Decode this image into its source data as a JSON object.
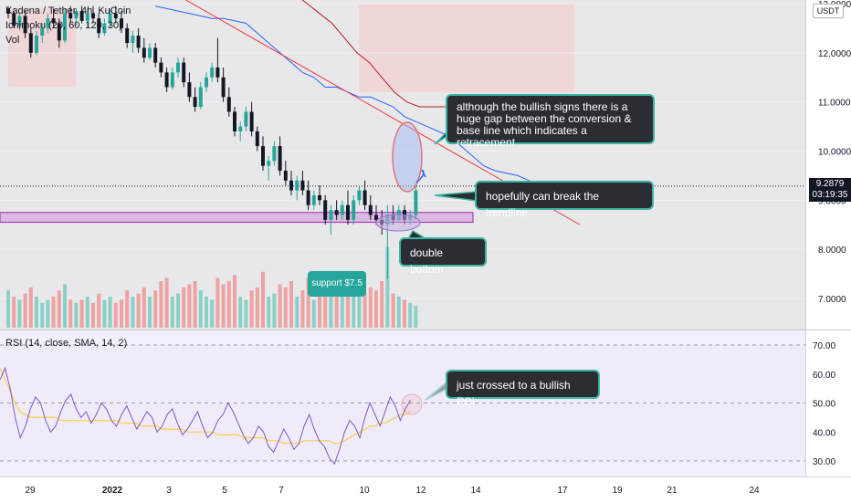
{
  "legend": {
    "symbol": "Kadena / Tether, 4h, KuCoin",
    "ichimoku": "Ichimoku (20, 60, 120, 30)",
    "vol": "Vol",
    "rsi": "RSI (14, close, SMA, 14, 2)"
  },
  "price_axis": {
    "currency": "USDT",
    "last_price": "9.2879",
    "countdown": "03:19:35"
  },
  "annotations": {
    "gap_note": "although the bullish signs there is a huge gap between the conversion & base line which indicates a retracement",
    "trendline_note": "hopefully can break the trendline",
    "double_bottom": "double bottom",
    "support": "support $7.5",
    "rsi_note": "just crossed to a bullish RSI"
  },
  "colors": {
    "up": "#26a69a",
    "down": "#131722",
    "vol_up": "#7fcdc4",
    "vol_down": "#ef9a9a",
    "conversion": "#2962ff",
    "base": "#b71c1c",
    "trendline": "#f23645",
    "rsi": "#7e57c2",
    "rsi_ma": "#f6d04d",
    "support_zone": "#ce93d8",
    "callout_border": "#3bb3a0"
  },
  "chart_data": [
    {
      "type": "candlestick",
      "title": "Kadena / Tether, 4h, KuCoin",
      "ylabel": "USDT",
      "ylim": [
        6.5,
        13.0
      ],
      "y_ticks": [
        "13.0000",
        "12.0000",
        "11.0000",
        "10.0000",
        "9.0000",
        "8.0000",
        "7.0000"
      ],
      "x_ticks": [
        "29",
        "2022",
        "3",
        "5",
        "7",
        "10",
        "12",
        "14",
        "17",
        "19",
        "21",
        "24"
      ],
      "candles": [
        [
          12.9,
          12.95,
          12.7,
          12.8
        ],
        [
          12.8,
          12.85,
          12.5,
          12.55
        ],
        [
          12.55,
          12.8,
          12.45,
          12.75
        ],
        [
          12.75,
          12.85,
          12.3,
          12.4
        ],
        [
          12.4,
          12.5,
          11.9,
          12.0
        ],
        [
          12.0,
          12.45,
          11.95,
          12.35
        ],
        [
          12.35,
          12.6,
          12.2,
          12.5
        ],
        [
          12.5,
          12.8,
          12.4,
          12.7
        ],
        [
          12.7,
          12.9,
          12.5,
          12.6
        ],
        [
          12.6,
          12.7,
          12.1,
          12.25
        ],
        [
          12.25,
          12.9,
          12.2,
          12.8
        ],
        [
          12.8,
          12.95,
          12.6,
          12.7
        ],
        [
          12.7,
          12.9,
          12.55,
          12.85
        ],
        [
          12.85,
          12.95,
          12.6,
          12.65
        ],
        [
          12.65,
          12.9,
          12.5,
          12.8
        ],
        [
          12.8,
          12.95,
          12.6,
          12.7
        ],
        [
          12.7,
          12.8,
          12.3,
          12.4
        ],
        [
          12.4,
          12.7,
          12.35,
          12.6
        ],
        [
          12.6,
          12.9,
          12.5,
          12.8
        ],
        [
          12.8,
          12.95,
          12.6,
          12.7
        ],
        [
          12.7,
          12.85,
          12.4,
          12.5
        ],
        [
          12.5,
          12.6,
          12.1,
          12.2
        ],
        [
          12.2,
          12.45,
          12.0,
          12.35
        ],
        [
          12.35,
          12.5,
          12.0,
          12.1
        ],
        [
          12.1,
          12.3,
          11.8,
          11.9
        ],
        [
          11.9,
          12.2,
          11.85,
          12.1
        ],
        [
          12.1,
          12.2,
          11.7,
          11.8
        ],
        [
          11.8,
          11.9,
          11.5,
          11.6
        ],
        [
          11.6,
          11.7,
          11.2,
          11.3
        ],
        [
          11.3,
          11.7,
          11.25,
          11.6
        ],
        [
          11.6,
          11.9,
          11.5,
          11.8
        ],
        [
          11.8,
          11.9,
          11.3,
          11.4
        ],
        [
          11.4,
          11.6,
          11.0,
          11.1
        ],
        [
          11.1,
          11.3,
          10.8,
          10.9
        ],
        [
          10.9,
          11.4,
          10.85,
          11.3
        ],
        [
          11.3,
          11.6,
          11.2,
          11.5
        ],
        [
          11.5,
          11.8,
          11.4,
          11.7
        ],
        [
          11.7,
          12.3,
          11.4,
          11.5
        ],
        [
          11.5,
          11.7,
          11.0,
          11.1
        ],
        [
          11.1,
          11.3,
          10.7,
          10.8
        ],
        [
          10.8,
          10.9,
          10.3,
          10.4
        ],
        [
          10.4,
          10.6,
          10.2,
          10.5
        ],
        [
          10.5,
          10.9,
          10.4,
          10.8
        ],
        [
          10.8,
          11.0,
          10.3,
          10.4
        ],
        [
          10.4,
          10.5,
          10.0,
          10.1
        ],
        [
          10.1,
          10.3,
          9.6,
          9.7
        ],
        [
          9.7,
          9.9,
          9.4,
          9.8
        ],
        [
          9.8,
          10.2,
          9.7,
          10.1
        ],
        [
          10.1,
          10.3,
          9.5,
          9.6
        ],
        [
          9.6,
          9.8,
          9.3,
          9.4
        ],
        [
          9.4,
          9.6,
          9.1,
          9.2
        ],
        [
          9.2,
          9.5,
          9.0,
          9.4
        ],
        [
          9.4,
          9.6,
          9.1,
          9.2
        ],
        [
          9.2,
          9.4,
          8.8,
          8.9
        ],
        [
          8.9,
          9.2,
          8.8,
          9.1
        ],
        [
          9.1,
          9.3,
          8.9,
          9.0
        ],
        [
          9.0,
          9.1,
          8.5,
          8.6
        ],
        [
          8.6,
          8.9,
          8.3,
          8.8
        ],
        [
          8.8,
          9.0,
          8.6,
          8.7
        ],
        [
          8.7,
          9.0,
          8.6,
          8.9
        ],
        [
          8.9,
          9.2,
          8.5,
          8.6
        ],
        [
          8.6,
          9.1,
          8.5,
          9.0
        ],
        [
          9.0,
          9.3,
          8.9,
          9.2
        ],
        [
          9.2,
          9.4,
          8.8,
          8.9
        ],
        [
          8.9,
          9.1,
          8.6,
          8.7
        ],
        [
          8.7,
          8.9,
          8.5,
          8.6
        ],
        [
          8.6,
          8.8,
          8.3,
          8.5
        ],
        [
          8.5,
          8.9,
          7.4,
          8.7
        ],
        [
          8.7,
          8.9,
          8.5,
          8.6
        ],
        [
          8.6,
          8.9,
          8.55,
          8.8
        ],
        [
          8.8,
          8.9,
          8.5,
          8.6
        ],
        [
          8.6,
          8.8,
          8.5,
          8.7
        ],
        [
          8.7,
          9.3,
          8.6,
          9.2
        ]
      ],
      "volume": [
        [
          1.2,
          1
        ],
        [
          1.0,
          0
        ],
        [
          0.9,
          1
        ],
        [
          1.1,
          0
        ],
        [
          1.3,
          0
        ],
        [
          1.0,
          1
        ],
        [
          0.8,
          1
        ],
        [
          0.9,
          1
        ],
        [
          1.0,
          0
        ],
        [
          1.2,
          0
        ],
        [
          1.4,
          1
        ],
        [
          0.9,
          0
        ],
        [
          0.8,
          1
        ],
        [
          0.9,
          0
        ],
        [
          1.0,
          1
        ],
        [
          0.8,
          0
        ],
        [
          1.1,
          0
        ],
        [
          0.9,
          1
        ],
        [
          1.0,
          1
        ],
        [
          0.8,
          0
        ],
        [
          0.9,
          0
        ],
        [
          1.2,
          0
        ],
        [
          1.0,
          1
        ],
        [
          1.1,
          0
        ],
        [
          1.3,
          0
        ],
        [
          1.0,
          1
        ],
        [
          1.2,
          0
        ],
        [
          1.5,
          0
        ],
        [
          1.6,
          0
        ],
        [
          1.0,
          1
        ],
        [
          1.1,
          1
        ],
        [
          1.3,
          0
        ],
        [
          1.4,
          0
        ],
        [
          1.5,
          0
        ],
        [
          1.2,
          1
        ],
        [
          1.0,
          1
        ],
        [
          0.9,
          1
        ],
        [
          1.6,
          0
        ],
        [
          1.4,
          0
        ],
        [
          1.5,
          0
        ],
        [
          1.7,
          0
        ],
        [
          1.0,
          1
        ],
        [
          0.9,
          1
        ],
        [
          1.2,
          0
        ],
        [
          1.3,
          0
        ],
        [
          1.8,
          0
        ],
        [
          1.0,
          1
        ],
        [
          1.1,
          1
        ],
        [
          1.4,
          0
        ],
        [
          1.3,
          0
        ],
        [
          1.5,
          0
        ],
        [
          1.0,
          1
        ],
        [
          1.2,
          0
        ],
        [
          1.6,
          0
        ],
        [
          0.9,
          1
        ],
        [
          1.0,
          0
        ],
        [
          1.7,
          0
        ],
        [
          1.2,
          1
        ],
        [
          1.0,
          0
        ],
        [
          1.1,
          1
        ],
        [
          1.4,
          0
        ],
        [
          1.0,
          1
        ],
        [
          1.2,
          1
        ],
        [
          1.1,
          0
        ],
        [
          1.3,
          0
        ],
        [
          1.2,
          0
        ],
        [
          1.5,
          0
        ],
        [
          2.6,
          1
        ],
        [
          1.1,
          0
        ],
        [
          1.0,
          1
        ],
        [
          0.9,
          0
        ],
        [
          0.8,
          1
        ],
        [
          0.7,
          1
        ]
      ],
      "conversion_line": [
        12.95,
        12.9,
        12.85,
        12.8,
        12.75,
        12.7,
        12.7,
        12.65,
        12.6,
        12.4,
        12.2,
        12.0,
        11.8,
        11.6,
        11.5,
        11.3,
        11.3,
        11.2,
        11.1,
        11.1,
        11.0,
        10.9,
        10.7,
        10.6,
        10.5,
        10.4,
        10.3,
        10.1,
        9.9,
        9.7,
        9.6,
        9.55,
        9.5,
        9.4,
        9.3
      ],
      "base_line": [
        13.8,
        13.6,
        13.4,
        13.2,
        13.0,
        12.8,
        12.6,
        12.3,
        12.0,
        11.8,
        11.5,
        11.2,
        11.0,
        10.9,
        10.9,
        10.9,
        10.9,
        10.9
      ],
      "trendline_from": [
        13.1,
        0
      ],
      "trendline_to": [
        8.5,
        70
      ],
      "support_zone": [
        8.55,
        8.75
      ],
      "cloud": [
        {
          "from": 62,
          "to": 100,
          "high": 13.0,
          "low": 11.2,
          "trend": "bearish"
        },
        {
          "from": 0,
          "to": 12,
          "high": 12.9,
          "low": 11.3,
          "trend": "bearish"
        }
      ]
    },
    {
      "type": "line",
      "title": "RSI (14, close, SMA, 14, 2)",
      "ylim": [
        27,
        73
      ],
      "y_ticks": [
        "70.00",
        "60.00",
        "50.00",
        "40.00",
        "30.00"
      ],
      "series": [
        {
          "name": "RSI",
          "values": [
            58,
            62,
            55,
            45,
            38,
            42,
            48,
            52,
            50,
            44,
            40,
            42,
            47,
            51,
            53,
            48,
            45,
            47,
            43,
            46,
            50,
            48,
            44,
            42,
            46,
            49,
            45,
            41,
            44,
            47,
            45,
            40,
            42,
            46,
            48,
            43,
            39,
            41,
            44,
            47,
            42,
            38,
            40,
            44,
            46,
            50,
            47,
            43,
            39,
            36,
            38,
            42,
            40,
            35,
            33,
            37,
            41,
            38,
            34,
            36,
            42,
            46,
            41,
            37,
            35,
            31,
            29,
            34,
            40,
            44,
            42,
            38,
            45,
            50,
            46,
            42,
            47,
            52,
            49,
            44,
            48,
            51
          ]
        },
        {
          "name": "RSI-based MA",
          "values": [
            62,
            58,
            54,
            50,
            47,
            46,
            45,
            45,
            45,
            45,
            45,
            45,
            44,
            44,
            44,
            44,
            44,
            44,
            44,
            44,
            44,
            44,
            44,
            44,
            43,
            43,
            43,
            43,
            42,
            42,
            42,
            42,
            41,
            41,
            41,
            41,
            41,
            40,
            40,
            40,
            40,
            40,
            40,
            39,
            39,
            39,
            39,
            39,
            38,
            38,
            38,
            38,
            38,
            37,
            37,
            37,
            36,
            36,
            36,
            36,
            37,
            37,
            37,
            37,
            37,
            37,
            36,
            36,
            37,
            38,
            39,
            40,
            41,
            42,
            42,
            43,
            43,
            44,
            45,
            46,
            46,
            47
          ]
        }
      ]
    }
  ]
}
